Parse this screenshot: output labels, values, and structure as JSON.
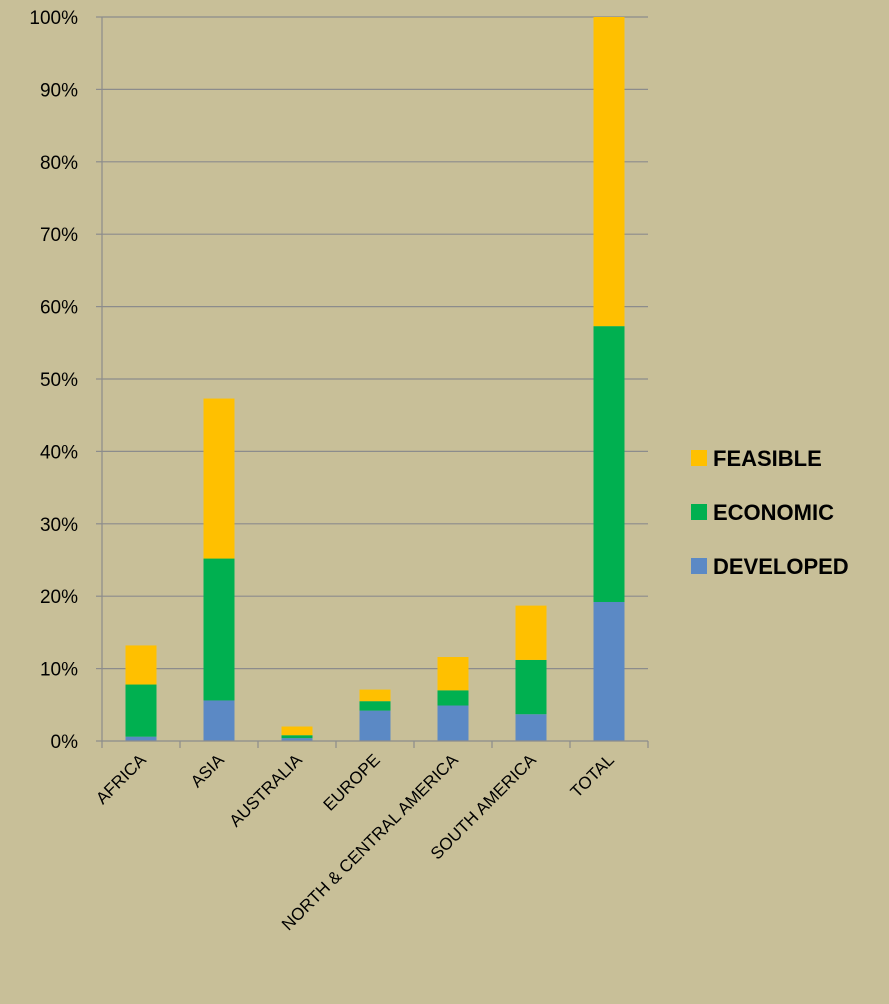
{
  "chart_data": {
    "type": "bar",
    "stacked": true,
    "title": "",
    "xlabel": "",
    "ylabel": "",
    "categories": [
      "AFRICA",
      "ASIA",
      "AUSTRALIA",
      "EUROPE",
      "NORTH & CENTRAL AMERICA",
      "SOUTH AMERICA",
      "TOTAL"
    ],
    "series": [
      {
        "name": "DEVELOPED",
        "color": "#5b89c5",
        "values": [
          0.6,
          5.6,
          0.4,
          4.2,
          4.9,
          3.7,
          19.2
        ]
      },
      {
        "name": "ECONOMIC",
        "color": "#00b050",
        "values": [
          7.2,
          19.6,
          0.4,
          1.3,
          2.1,
          7.5,
          38.1
        ]
      },
      {
        "name": "FEASIBLE",
        "color": "#ffc000",
        "values": [
          5.4,
          22.1,
          1.2,
          1.6,
          4.6,
          7.5,
          42.7
        ]
      }
    ],
    "ylim": [
      0,
      100
    ],
    "ytick_step": 10,
    "ytick_format": "percent",
    "grid": true,
    "legend": {
      "position": "right",
      "order": [
        "FEASIBLE",
        "ECONOMIC",
        "DEVELOPED"
      ]
    }
  }
}
